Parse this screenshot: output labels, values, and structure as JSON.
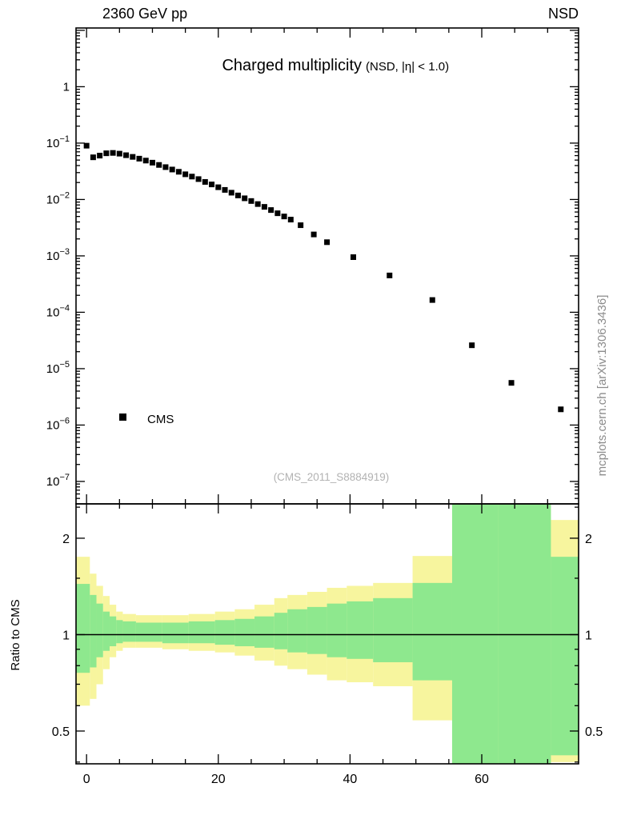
{
  "header": {
    "left": "2360 GeV pp",
    "right": "NSD"
  },
  "title": {
    "main": "Charged multiplicity",
    "paren": "(NSD, |η| < 1.0)"
  },
  "legend": {
    "label": "CMS"
  },
  "watermark": "(CMS_2011_S8884919)",
  "side_note": "mcplots.cern.ch [arXiv:1306.3436]",
  "ratio_ylabel": "Ratio to CMS",
  "colors": {
    "marker": "#000000",
    "frame": "#000000",
    "yellow_band": "#f7f59e",
    "green_band": "#8ee88e",
    "watermark_text": "#b2b2b2",
    "side_note_text": "#8c8c8c"
  },
  "chart_data": {
    "type": "scatter",
    "title": "Charged multiplicity (NSD, |η| < 1.0)",
    "x_axis": {
      "lim": [
        -1.6,
        74.7
      ],
      "major_ticks": [
        0,
        20,
        40,
        60
      ],
      "minor_step": 5
    },
    "top_panel": {
      "yscale": "log",
      "ylim": [
        4e-08,
        11
      ],
      "ytick_exponents": [
        0,
        -1,
        -2,
        -3,
        -4,
        -5,
        -6,
        -7
      ],
      "series": [
        {
          "name": "CMS",
          "marker": "filled-square",
          "color": "#000000",
          "x": [
            0,
            1,
            2,
            3,
            4,
            5,
            6,
            7,
            8,
            9,
            10,
            11,
            12,
            13,
            14,
            15,
            16,
            17,
            18,
            19,
            20,
            21,
            22,
            23,
            24,
            25,
            26,
            27,
            28,
            29,
            30,
            31,
            32.5,
            34.5,
            36.5,
            40.5,
            46,
            52.5,
            58.5,
            64.5,
            72
          ],
          "y": [
            0.09,
            0.056,
            0.06,
            0.066,
            0.067,
            0.065,
            0.061,
            0.057,
            0.053,
            0.049,
            0.045,
            0.041,
            0.0375,
            0.034,
            0.031,
            0.028,
            0.0255,
            0.023,
            0.0205,
            0.0185,
            0.0165,
            0.0148,
            0.0132,
            0.0118,
            0.0105,
            0.0094,
            0.0083,
            0.0074,
            0.0065,
            0.0057,
            0.005,
            0.0044,
            0.0035,
            0.0024,
            0.00175,
            0.00095,
            0.00045,
            0.000165,
            2.6e-05,
            5.6e-06,
            1.9e-06
          ]
        }
      ]
    },
    "bottom_panel": {
      "yscale": "log",
      "ylim": [
        0.395,
        2.56
      ],
      "ytick_labels": [
        0.5,
        1,
        2
      ],
      "minor_ticks": [
        0.4,
        0.6,
        0.7,
        0.8,
        0.9,
        1.5,
        2.5
      ],
      "reference_line": 1,
      "bands": {
        "outer_band": {
          "color": "#f7f59e",
          "bins": [
            [
              -1.6,
              0.5,
              0.6,
              1.75
            ],
            [
              0.5,
              1.5,
              0.63,
              1.55
            ],
            [
              1.5,
              2.5,
              0.7,
              1.42
            ],
            [
              2.5,
              3.5,
              0.78,
              1.32
            ],
            [
              3.5,
              4.5,
              0.85,
              1.24
            ],
            [
              4.5,
              5.5,
              0.89,
              1.18
            ],
            [
              5.5,
              7.5,
              0.91,
              1.16
            ],
            [
              7.5,
              11.5,
              0.91,
              1.15
            ],
            [
              11.5,
              15.5,
              0.9,
              1.15
            ],
            [
              15.5,
              19.5,
              0.89,
              1.16
            ],
            [
              19.5,
              22.5,
              0.88,
              1.18
            ],
            [
              22.5,
              25.5,
              0.86,
              1.2
            ],
            [
              25.5,
              28.5,
              0.83,
              1.24
            ],
            [
              28.5,
              30.5,
              0.8,
              1.3
            ],
            [
              30.5,
              33.5,
              0.78,
              1.33
            ],
            [
              33.5,
              36.5,
              0.75,
              1.36
            ],
            [
              36.5,
              39.5,
              0.72,
              1.4
            ],
            [
              39.5,
              43.5,
              0.71,
              1.42
            ],
            [
              43.5,
              49.5,
              0.69,
              1.45
            ],
            [
              49.5,
              55.5,
              0.54,
              1.76
            ],
            [
              55.5,
              62.5,
              0.395,
              2.56
            ],
            [
              62.5,
              70.5,
              0.395,
              2.56
            ],
            [
              70.5,
              74.7,
              0.4,
              2.28
            ]
          ]
        },
        "inner_band": {
          "color": "#8ee88e",
          "bins": [
            [
              -1.6,
              0.5,
              0.76,
              1.44
            ],
            [
              0.5,
              1.5,
              0.79,
              1.33
            ],
            [
              1.5,
              2.5,
              0.85,
              1.25
            ],
            [
              2.5,
              3.5,
              0.89,
              1.18
            ],
            [
              3.5,
              4.5,
              0.92,
              1.14
            ],
            [
              4.5,
              5.5,
              0.94,
              1.11
            ],
            [
              5.5,
              7.5,
              0.95,
              1.1
            ],
            [
              7.5,
              11.5,
              0.95,
              1.09
            ],
            [
              11.5,
              15.5,
              0.94,
              1.09
            ],
            [
              15.5,
              19.5,
              0.94,
              1.1
            ],
            [
              19.5,
              22.5,
              0.93,
              1.11
            ],
            [
              22.5,
              25.5,
              0.92,
              1.12
            ],
            [
              25.5,
              28.5,
              0.91,
              1.14
            ],
            [
              28.5,
              30.5,
              0.9,
              1.17
            ],
            [
              30.5,
              33.5,
              0.88,
              1.2
            ],
            [
              33.5,
              36.5,
              0.87,
              1.22
            ],
            [
              36.5,
              39.5,
              0.85,
              1.25
            ],
            [
              39.5,
              43.5,
              0.84,
              1.27
            ],
            [
              43.5,
              49.5,
              0.82,
              1.3
            ],
            [
              49.5,
              55.5,
              0.72,
              1.45
            ],
            [
              55.5,
              62.5,
              0.395,
              2.56
            ],
            [
              62.5,
              70.5,
              0.395,
              2.56
            ],
            [
              70.5,
              74.7,
              0.42,
              1.75
            ]
          ]
        }
      }
    }
  }
}
